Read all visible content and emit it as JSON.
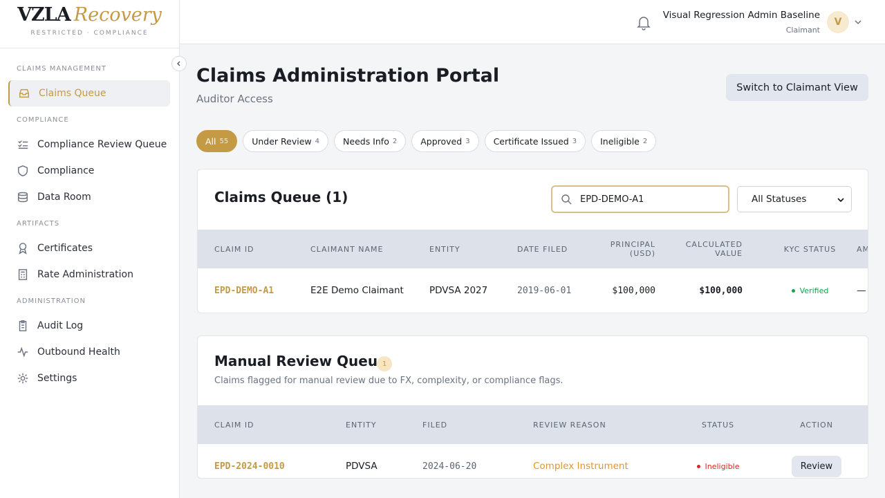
{
  "brand": {
    "name": "VZLA",
    "name_accent": "Recovery",
    "tagline": "RESTRICTED · COMPLIANCE"
  },
  "sidebar": {
    "sections": [
      {
        "title": "CLAIMS MANAGEMENT",
        "items": [
          "Claims Queue"
        ]
      },
      {
        "title": "COMPLIANCE",
        "items": [
          "Compliance Review Queue",
          "Compliance",
          "Data Room"
        ]
      },
      {
        "title": "ARTIFACTS",
        "items": [
          "Certificates",
          "Rate Administration"
        ]
      },
      {
        "title": "ADMINISTRATION",
        "items": [
          "Audit Log",
          "Outbound Health",
          "Settings"
        ]
      }
    ]
  },
  "header": {
    "user_name": "Visual Regression Admin Baseline",
    "user_role": "Claimant",
    "avatar": "V"
  },
  "page": {
    "title": "Claims Administration Portal",
    "subtitle": "Auditor Access",
    "switch_button": "Switch to Claimant View"
  },
  "filters": [
    {
      "label": "All",
      "count": 55
    },
    {
      "label": "Under Review",
      "count": 4
    },
    {
      "label": "Needs Info",
      "count": 2
    },
    {
      "label": "Approved",
      "count": 3
    },
    {
      "label": "Certificate Issued",
      "count": 3
    },
    {
      "label": "Ineligible",
      "count": 2
    }
  ],
  "claims_queue": {
    "title": "Claims Queue (1)",
    "search": "EPD-DEMO-A1",
    "status_select": "All Statuses",
    "columns": [
      "CLAIM ID",
      "CLAIMANT NAME",
      "ENTITY",
      "DATE FILED",
      "PRINCIPAL (USD)",
      "CALCULATED VALUE",
      "KYC STATUS",
      "AML RISK"
    ],
    "rows": [
      [
        "EPD-DEMO-A1",
        "E2E Demo Claimant",
        "PDVSA 2027",
        "2019-06-01",
        "$100,000",
        "$100,000",
        "Verified",
        "—"
      ]
    ]
  },
  "manual_review": {
    "title": "Manual Review Queue",
    "badge": "1",
    "description": "Claims flagged for manual review due to FX, complexity, or compliance flags.",
    "columns": [
      "CLAIM ID",
      "ENTITY",
      "FILED",
      "REVIEW REASON",
      "STATUS",
      "ACTION"
    ],
    "rows": [
      [
        "EPD-2024-0010",
        "PDVSA",
        "2024-06-20",
        "Complex Instrument",
        "Ineligible",
        "Review"
      ]
    ]
  }
}
